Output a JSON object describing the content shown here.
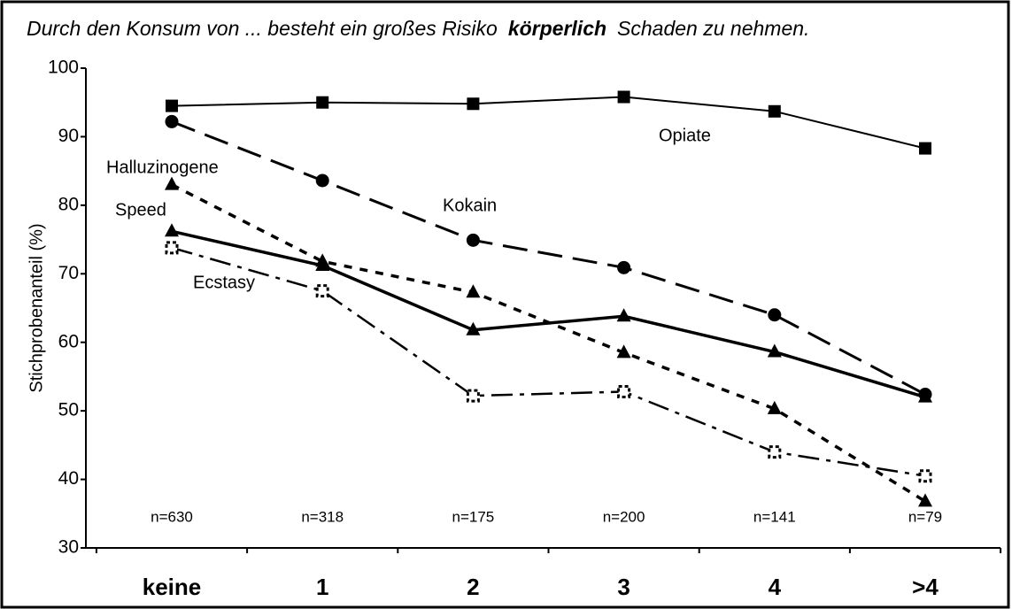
{
  "chart_data": {
    "type": "line",
    "title": [
      "Durch den Konsum von ... besteht ein großes Risiko",
      "körperlich",
      "Schaden zu nehmen."
    ],
    "ylabel": "Stichprobenanteil (%)",
    "categories": [
      "keine",
      "1",
      "2",
      "3",
      "4",
      ">4"
    ],
    "annotations": [
      "n=630",
      "n=318",
      "n=175",
      "n=200",
      "n=141",
      "n=79"
    ],
    "ylim": [
      30,
      100
    ],
    "yticks": [
      30,
      40,
      50,
      60,
      70,
      80,
      90,
      100
    ],
    "series": [
      {
        "name": "Opiate",
        "color": "#000000",
        "values": [
          94.5,
          95,
          94.8,
          95.8,
          93.7,
          88.3
        ]
      },
      {
        "name": "Kokain",
        "color": "#000000",
        "values": [
          92.2,
          83.6,
          74.9,
          70.9,
          64,
          52.4
        ]
      },
      {
        "name": "Halluzinogene",
        "color": "#000000",
        "values": [
          83,
          71.8,
          67.3,
          58.5,
          50.3,
          36.8
        ]
      },
      {
        "name": "Speed",
        "color": "#000000",
        "values": [
          76.2,
          71.2,
          61.8,
          63.8,
          58.6,
          52.0
        ]
      },
      {
        "name": "Ecstasy",
        "color": "#000000",
        "values": [
          73.8,
          67.5,
          52.2,
          52.8,
          44,
          40.5
        ]
      }
    ]
  }
}
